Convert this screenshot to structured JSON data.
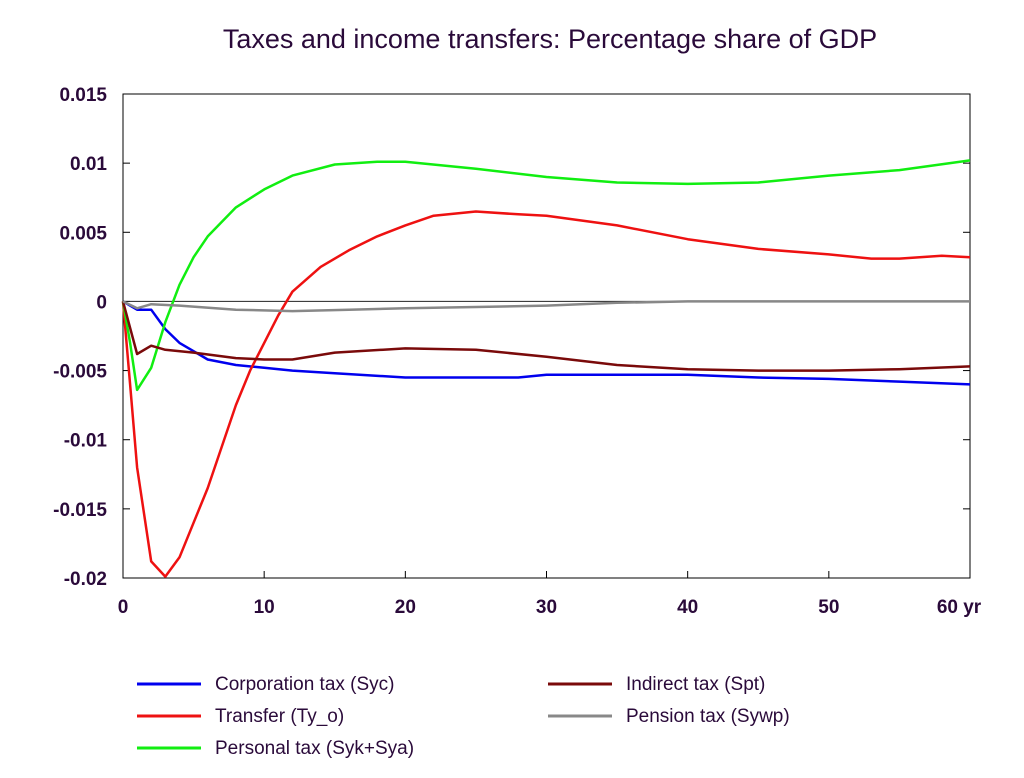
{
  "chart_data": {
    "type": "line",
    "title": "Taxes and income transfers: Percentage share of GDP",
    "xlabel": "",
    "ylabel": "",
    "x_unit": "yr",
    "xlim": [
      0,
      60
    ],
    "ylim": [
      -0.02,
      0.015
    ],
    "x_ticks": [
      0,
      10,
      20,
      30,
      40,
      50,
      60
    ],
    "x_tick_labels": [
      "0",
      "10",
      "20",
      "30",
      "40",
      "50",
      "60 yr"
    ],
    "y_ticks": [
      0.015,
      0.01,
      0.005,
      0,
      -0.005,
      -0.01,
      -0.015,
      -0.02
    ],
    "y_tick_labels": [
      "0.015",
      "0.01",
      "0.005",
      "0",
      "-0.005",
      "-0.01",
      "-0.015",
      "-0.02"
    ],
    "grid": false,
    "legend_position": "bottom",
    "series": [
      {
        "name": "Corporation tax (Syc)",
        "color": "#0000ee",
        "points": [
          [
            0,
            0
          ],
          [
            1,
            -0.0006
          ],
          [
            2,
            -0.0006
          ],
          [
            3,
            -0.002
          ],
          [
            4,
            -0.003
          ],
          [
            5,
            -0.0036
          ],
          [
            6,
            -0.0042
          ],
          [
            8,
            -0.0046
          ],
          [
            10,
            -0.0048
          ],
          [
            12,
            -0.005
          ],
          [
            15,
            -0.0052
          ],
          [
            20,
            -0.0055
          ],
          [
            25,
            -0.0055
          ],
          [
            28,
            -0.0055
          ],
          [
            30,
            -0.0053
          ],
          [
            35,
            -0.0053
          ],
          [
            40,
            -0.0053
          ],
          [
            45,
            -0.0055
          ],
          [
            50,
            -0.0056
          ],
          [
            55,
            -0.0058
          ],
          [
            60,
            -0.006
          ]
        ]
      },
      {
        "name": "Transfer (Ty_o)",
        "color": "#ee1111",
        "points": [
          [
            0,
            0
          ],
          [
            0.5,
            -0.006
          ],
          [
            1,
            -0.012
          ],
          [
            2,
            -0.0188
          ],
          [
            3,
            -0.0199
          ],
          [
            4,
            -0.0185
          ],
          [
            5,
            -0.016
          ],
          [
            6,
            -0.0135
          ],
          [
            7,
            -0.0105
          ],
          [
            8,
            -0.0075
          ],
          [
            9,
            -0.005
          ],
          [
            10,
            -0.003
          ],
          [
            11,
            -0.001
          ],
          [
            12,
            0.0007
          ],
          [
            14,
            0.0025
          ],
          [
            16,
            0.0037
          ],
          [
            18,
            0.0047
          ],
          [
            20,
            0.0055
          ],
          [
            22,
            0.0062
          ],
          [
            25,
            0.0065
          ],
          [
            28,
            0.0063
          ],
          [
            30,
            0.0062
          ],
          [
            35,
            0.0055
          ],
          [
            40,
            0.0045
          ],
          [
            45,
            0.0038
          ],
          [
            50,
            0.0034
          ],
          [
            53,
            0.0031
          ],
          [
            55,
            0.0031
          ],
          [
            58,
            0.0033
          ],
          [
            60,
            0.0032
          ]
        ]
      },
      {
        "name": "Personal tax (Syk+Sya)",
        "color": "#11ee11",
        "points": [
          [
            0,
            0
          ],
          [
            0.5,
            -0.003
          ],
          [
            1,
            -0.0064
          ],
          [
            2,
            -0.0048
          ],
          [
            3,
            -0.0015
          ],
          [
            4,
            0.0012
          ],
          [
            5,
            0.0032
          ],
          [
            6,
            0.0047
          ],
          [
            8,
            0.0068
          ],
          [
            10,
            0.0081
          ],
          [
            12,
            0.0091
          ],
          [
            15,
            0.0099
          ],
          [
            18,
            0.0101
          ],
          [
            20,
            0.0101
          ],
          [
            25,
            0.0096
          ],
          [
            30,
            0.009
          ],
          [
            35,
            0.0086
          ],
          [
            40,
            0.0085
          ],
          [
            45,
            0.0086
          ],
          [
            50,
            0.0091
          ],
          [
            55,
            0.0095
          ],
          [
            60,
            0.0102
          ]
        ]
      },
      {
        "name": "Indirect tax (Spt)",
        "color": "#7a0a0a",
        "points": [
          [
            0,
            0
          ],
          [
            1,
            -0.0038
          ],
          [
            2,
            -0.0032
          ],
          [
            3,
            -0.0035
          ],
          [
            5,
            -0.0037
          ],
          [
            8,
            -0.0041
          ],
          [
            10,
            -0.0042
          ],
          [
            12,
            -0.0042
          ],
          [
            15,
            -0.0037
          ],
          [
            20,
            -0.0034
          ],
          [
            25,
            -0.0035
          ],
          [
            30,
            -0.004
          ],
          [
            35,
            -0.0046
          ],
          [
            40,
            -0.0049
          ],
          [
            45,
            -0.005
          ],
          [
            50,
            -0.005
          ],
          [
            55,
            -0.0049
          ],
          [
            60,
            -0.0047
          ]
        ]
      },
      {
        "name": "Pension tax (Sywp)",
        "color": "#888888",
        "points": [
          [
            0,
            0
          ],
          [
            1,
            -0.0005
          ],
          [
            2,
            -0.0002
          ],
          [
            4,
            -0.0003
          ],
          [
            8,
            -0.0006
          ],
          [
            12,
            -0.0007
          ],
          [
            16,
            -0.0006
          ],
          [
            20,
            -0.0005
          ],
          [
            25,
            -0.0004
          ],
          [
            30,
            -0.0003
          ],
          [
            35,
            -0.0001
          ],
          [
            40,
            0
          ],
          [
            50,
            0
          ],
          [
            60,
            0
          ]
        ]
      }
    ],
    "baseline": {
      "value": 0,
      "color": "#222222"
    }
  }
}
